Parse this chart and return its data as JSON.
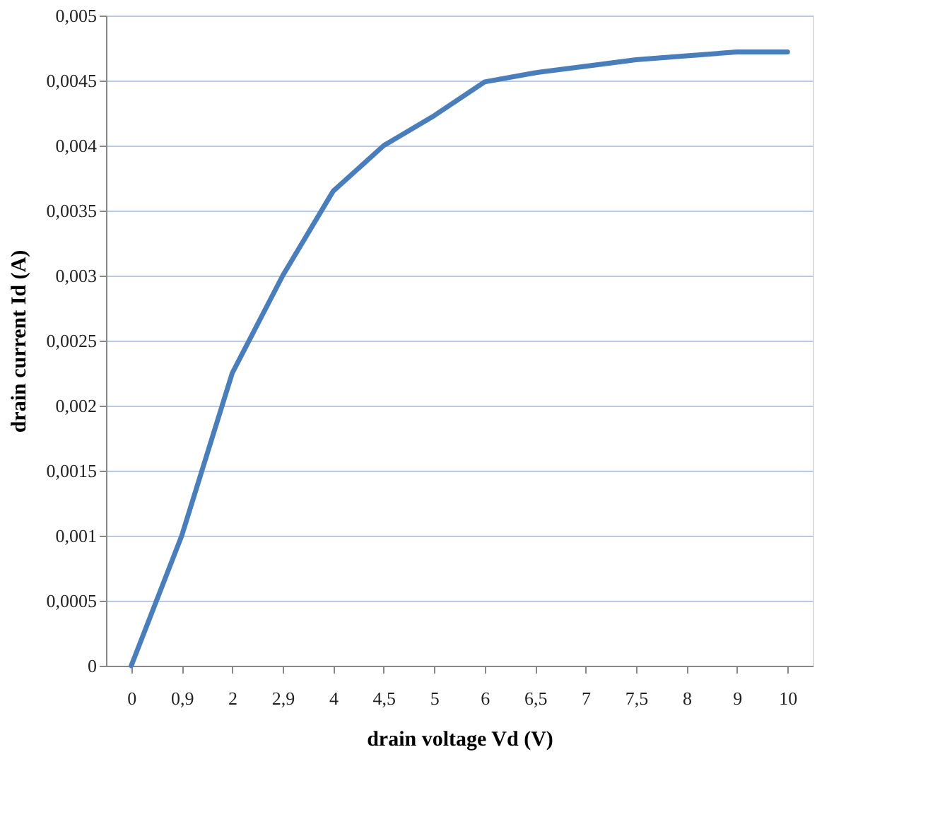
{
  "chart_data": {
    "type": "line",
    "xlabel": "drain voltage Vd (V)",
    "ylabel": "drain current Id  (A)",
    "categories": [
      "0",
      "0,9",
      "2",
      "2,9",
      "4",
      "4,5",
      "5",
      "6",
      "6,5",
      "7",
      "7,5",
      "8",
      "9",
      "10"
    ],
    "series": [
      {
        "color": "#4a7ebb",
        "values": [
          0,
          0.001,
          0.00225,
          0.003,
          0.00365,
          0.004,
          0.00423,
          0.00449,
          0.00456,
          0.00461,
          0.00466,
          0.00469,
          0.00472,
          0.00472
        ]
      }
    ],
    "ylim": [
      0,
      0.005
    ],
    "yticks": [
      0,
      {
        "value": 0.0005,
        "label": "0,0005"
      },
      {
        "value": 0.001,
        "label": "0,001"
      },
      {
        "value": 0.0015,
        "label": "0,0015"
      },
      {
        "value": 0.002,
        "label": "0,002"
      },
      {
        "value": 0.0025,
        "label": "0,0025"
      },
      {
        "value": 0.003,
        "label": "0,003"
      },
      {
        "value": 0.0035,
        "label": "0,0035"
      },
      {
        "value": 0.004,
        "label": "0,004"
      },
      {
        "value": 0.0045,
        "label": "0,0045"
      },
      {
        "value": 0.005,
        "label": "0,005"
      }
    ],
    "grid": "y",
    "marker": "none",
    "line_style": "solid"
  }
}
